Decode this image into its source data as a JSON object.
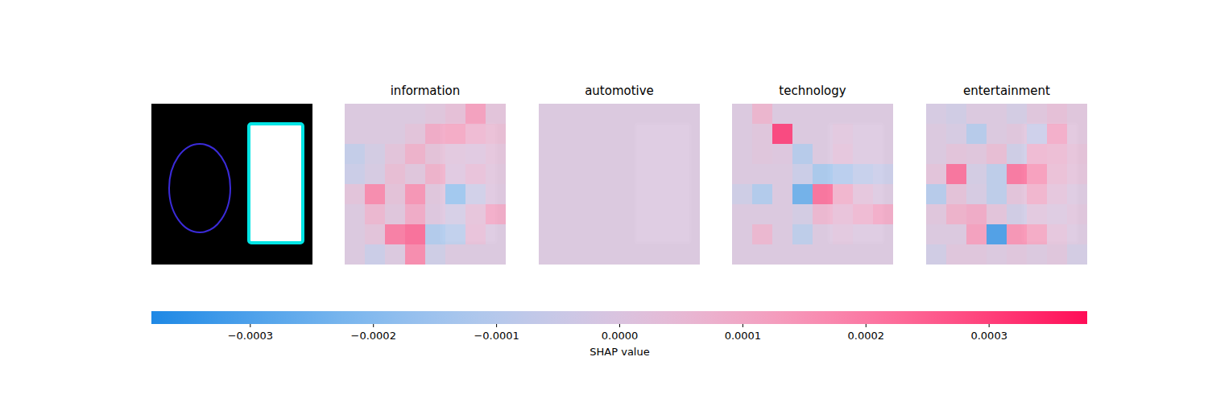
{
  "chart_data": {
    "type": "heatmap",
    "tick_labels": false,
    "panels": [
      {
        "title": "information",
        "cells": [
          [
            0,
            0,
            0,
            0,
            2e-05,
            5e-05,
            0.00015,
            3e-05
          ],
          [
            0,
            0,
            0,
            3e-05,
            0.00012,
            0.00013,
            8e-05,
            6e-05
          ],
          [
            -8e-05,
            -3e-05,
            3e-05,
            0.0001,
            4e-05,
            2e-05,
            1e-05,
            3e-05
          ],
          [
            -6e-05,
            -2e-05,
            6e-05,
            2e-05,
            0.0001,
            1e-05,
            5e-05,
            2e-05
          ],
          [
            3e-05,
            0.0002,
            4e-05,
            0.00018,
            2e-05,
            -0.00018,
            -5e-05,
            1e-05
          ],
          [
            0,
            8e-05,
            2e-05,
            0.00012,
            1e-05,
            -3e-05,
            4e-05,
            0.00012
          ],
          [
            0,
            3e-05,
            0.00023,
            0.00026,
            -0.00013,
            -0.0001,
            5e-05,
            0
          ],
          [
            0,
            -6e-05,
            0,
            0.0002,
            -5e-05,
            0,
            0,
            0
          ]
        ]
      },
      {
        "title": "automotive",
        "cells": [
          [
            0,
            0,
            0,
            0,
            0,
            0,
            0,
            0
          ],
          [
            0,
            0,
            0,
            0,
            0,
            0,
            0,
            0
          ],
          [
            0,
            0,
            0,
            0,
            0,
            0,
            0,
            0
          ],
          [
            0,
            0,
            0,
            0,
            0,
            0,
            0,
            0
          ],
          [
            0,
            0,
            0,
            0,
            0,
            0,
            0,
            0
          ],
          [
            0,
            0,
            0,
            0,
            0,
            0,
            0,
            0
          ],
          [
            0,
            0,
            0,
            0,
            0,
            0,
            0,
            0
          ],
          [
            0,
            0,
            0,
            0,
            0,
            0,
            0,
            0
          ]
        ]
      },
      {
        "title": "technology",
        "cells": [
          [
            0,
            9e-05,
            0,
            0,
            0,
            0,
            0,
            0
          ],
          [
            0,
            2e-05,
            0.00034,
            0,
            0,
            2e-05,
            0,
            0
          ],
          [
            0,
            2e-05,
            1e-05,
            -0.00012,
            0,
            3e-05,
            0,
            0
          ],
          [
            0,
            0,
            0,
            -6e-05,
            -0.00015,
            -0.00012,
            -8e-05,
            -6e-05
          ],
          [
            -5e-05,
            -0.00013,
            0,
            -0.00028,
            0.00025,
            0.0001,
            3e-05,
            0
          ],
          [
            0,
            0,
            0,
            -3e-05,
            8e-05,
            5e-05,
            8e-05,
            0.00012
          ],
          [
            0,
            8e-05,
            0,
            -0.0001,
            0,
            2e-05,
            0,
            0
          ],
          [
            0,
            0,
            0,
            0,
            0,
            0,
            0,
            0
          ]
        ]
      },
      {
        "title": "entertainment",
        "cells": [
          [
            -2e-05,
            -4e-05,
            0,
            0,
            -3e-05,
            2e-05,
            5e-05,
            2e-05
          ],
          [
            0,
            -2e-05,
            -0.00012,
            0,
            2e-05,
            -6e-05,
            0.00012,
            2e-05
          ],
          [
            0,
            3e-05,
            2e-05,
            6e-05,
            -5e-05,
            8e-05,
            7e-05,
            4e-05
          ],
          [
            3e-05,
            0.00025,
            -3e-05,
            -0.0001,
            0.00024,
            0.00016,
            6e-05,
            3e-05
          ],
          [
            -0.00012,
            4e-05,
            -2e-05,
            -0.0001,
            3e-05,
            0.0001,
            3e-05,
            0
          ],
          [
            2e-05,
            0.0001,
            0.00012,
            3e-05,
            -4e-05,
            2e-05,
            0,
            2e-05
          ],
          [
            0,
            0,
            0.00015,
            -0.00035,
            0.00018,
            0.00013,
            3e-05,
            0
          ],
          [
            -4e-05,
            2e-05,
            2e-05,
            0,
            2e-05,
            0,
            2e-05,
            -3e-05
          ]
        ]
      }
    ],
    "colorbar": {
      "label": "SHAP value",
      "range": [
        -0.00038,
        0.00038
      ],
      "ticks": [
        {
          "value": -0.0003,
          "label": "−0.0003"
        },
        {
          "value": -0.0002,
          "label": "−0.0002"
        },
        {
          "value": -0.0001,
          "label": "−0.0001"
        },
        {
          "value": 0,
          "label": "0.0000"
        },
        {
          "value": 0.0001,
          "label": "0.0001"
        },
        {
          "value": 0.0002,
          "label": "0.0002"
        },
        {
          "value": 0.0003,
          "label": "0.0003"
        }
      ],
      "colors": [
        "#1e88e5",
        "#ffffff",
        "#ff0d57"
      ]
    }
  }
}
